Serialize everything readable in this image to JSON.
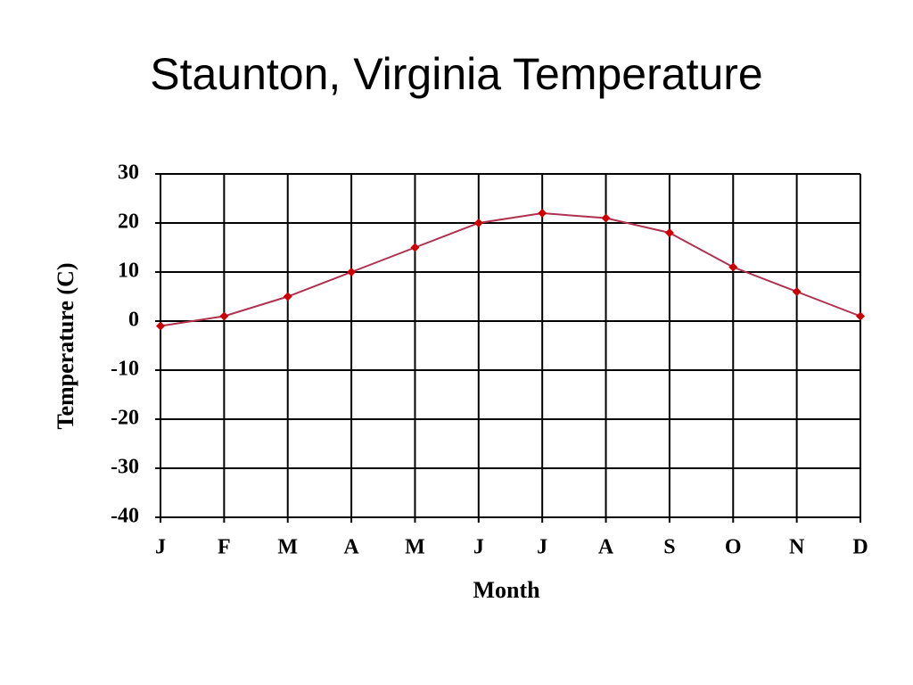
{
  "chart_data": {
    "type": "line",
    "title": "Staunton, Virginia Temperature",
    "x_label": "Month",
    "y_label": "Temperature (C)",
    "categories": [
      "J",
      "F",
      "M",
      "A",
      "M",
      "J",
      "J",
      "A",
      "S",
      "O",
      "N",
      "D"
    ],
    "values": [
      -1,
      1,
      5,
      10,
      15,
      20,
      22,
      21,
      18,
      11,
      6,
      1
    ],
    "color": "#cc0000",
    "line_color": "#b03050",
    "ylim": [
      -40,
      30
    ],
    "yticks": [
      -40,
      -30,
      -20,
      -10,
      0,
      10,
      20,
      30
    ],
    "grid": true
  }
}
